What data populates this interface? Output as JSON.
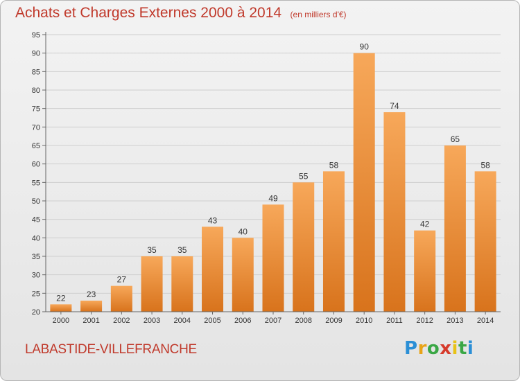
{
  "header": {
    "title": "Achats et Charges Externes 2000 à 2014",
    "unit": "(en milliers d'€)"
  },
  "footer": {
    "commune": "LABASTIDE-VILLEFRANCHE",
    "brand": "Proxiti"
  },
  "colors": {
    "title": "#c0392b",
    "bar_light": "#f7a85a",
    "bar_dark": "#d8731c",
    "gridline": "#cfcfcf",
    "axis_text": "#333333"
  },
  "chart_data": {
    "type": "bar",
    "title": "Achats et Charges Externes 2000 à 2014",
    "subtitle": "(en milliers d'€)",
    "categories": [
      "2000",
      "2001",
      "2002",
      "2003",
      "2004",
      "2005",
      "2006",
      "2007",
      "2008",
      "2009",
      "2010",
      "2011",
      "2012",
      "2013",
      "2014"
    ],
    "values": [
      22,
      23,
      27,
      35,
      35,
      43,
      40,
      49,
      55,
      58,
      90,
      74,
      42,
      65,
      58
    ],
    "ylim": [
      20,
      95
    ],
    "yticks": [
      20,
      25,
      30,
      35,
      40,
      45,
      50,
      55,
      60,
      65,
      70,
      75,
      80,
      85,
      90,
      95
    ],
    "grid": true,
    "data_labels": true
  }
}
